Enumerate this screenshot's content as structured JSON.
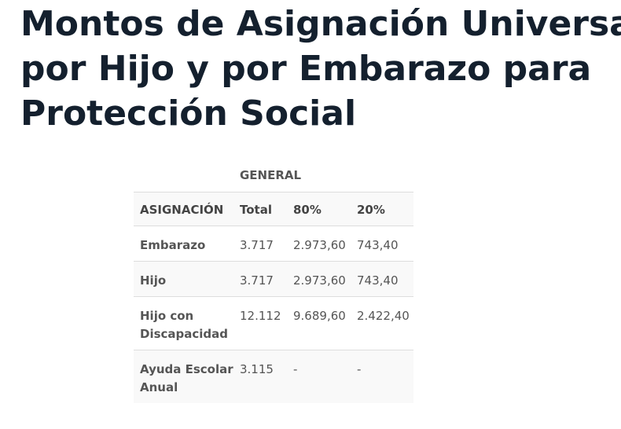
{
  "title": {
    "line1": "Montos de Asignación Universal",
    "line2": "por Hijo y por Embarazo para",
    "line3": "Protección Social"
  },
  "table": {
    "group_header": "GENERAL",
    "columns": [
      "ASIGNACIÓN",
      "Total",
      "80%",
      "20%"
    ],
    "rows": [
      {
        "label": "Embarazo",
        "total": "3.717",
        "p80": "2.973,60",
        "p20": "743,40"
      },
      {
        "label": "Hijo",
        "total": "3.717",
        "p80": "2.973,60",
        "p20": "743,40"
      },
      {
        "label": "Hijo con Discapacidad",
        "total": "12.112",
        "p80": "9.689,60",
        "p20": "2.422,40"
      },
      {
        "label": "Ayuda Escolar Anual",
        "total": "3.115",
        "p80": "-",
        "p20": "-"
      }
    ]
  }
}
